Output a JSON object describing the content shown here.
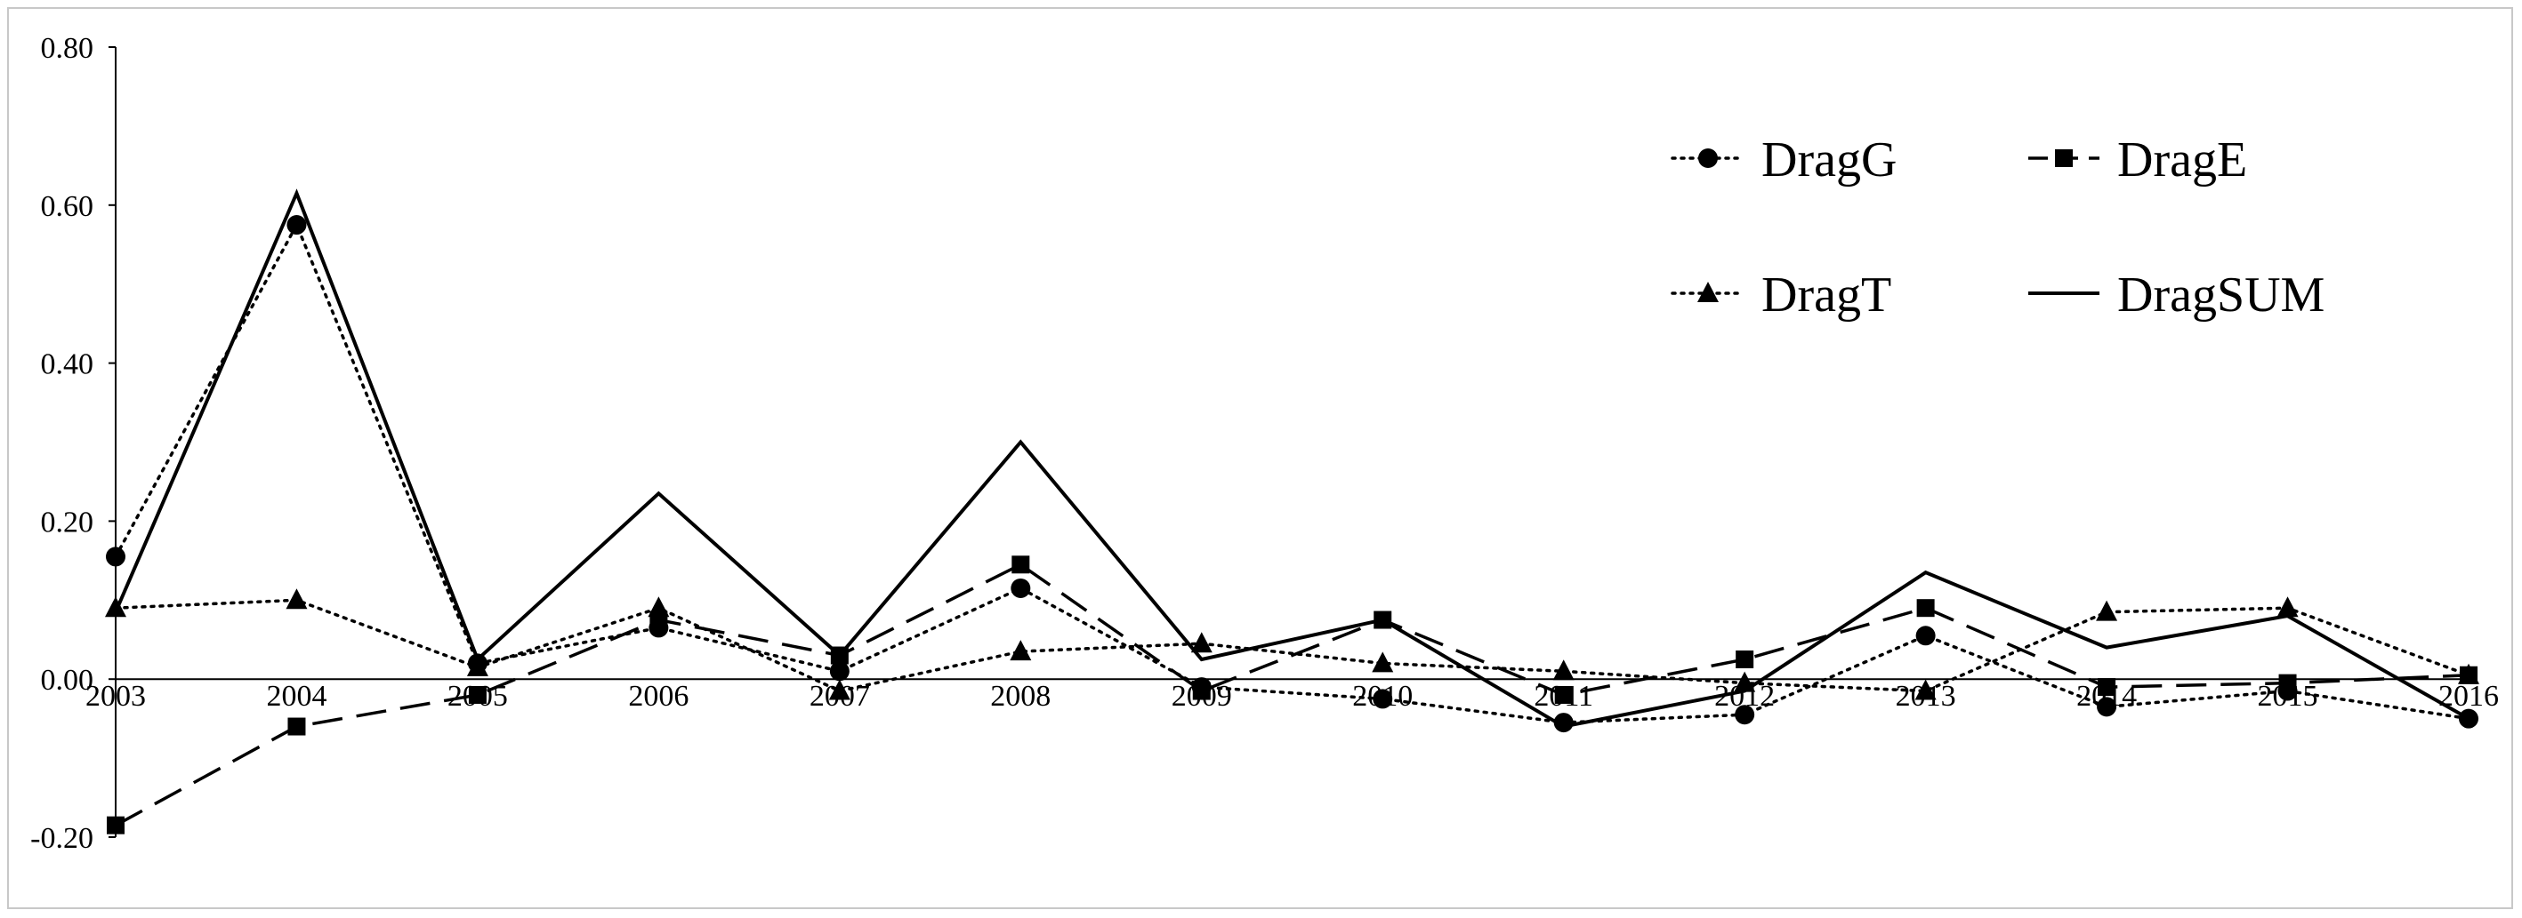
{
  "chart_data": {
    "type": "line",
    "title": "",
    "xlabel": "",
    "ylabel": "",
    "x": [
      "2003",
      "2004",
      "2005",
      "2006",
      "2007",
      "2008",
      "2009",
      "2010",
      "2011",
      "2012",
      "2013",
      "2014",
      "2015",
      "2016"
    ],
    "ylim": [
      -0.2,
      0.8
    ],
    "yticks": [
      "-0.20",
      "0.00",
      "0.20",
      "0.40",
      "0.60",
      "0.80"
    ],
    "grid": false,
    "legend_position": "top-right",
    "series": [
      {
        "name": "DragG",
        "marker": "circle",
        "line": "dotted",
        "values": [
          0.155,
          0.575,
          0.02,
          0.065,
          0.01,
          0.115,
          -0.01,
          -0.025,
          -0.055,
          -0.045,
          0.055,
          -0.035,
          -0.015,
          -0.05
        ]
      },
      {
        "name": "DragE",
        "marker": "square",
        "line": "dashed",
        "values": [
          -0.185,
          -0.06,
          -0.02,
          0.075,
          0.03,
          0.145,
          -0.015,
          0.075,
          -0.02,
          0.025,
          0.09,
          -0.01,
          -0.005,
          0.005
        ]
      },
      {
        "name": "DragT",
        "marker": "triangle",
        "line": "dotted",
        "values": [
          0.09,
          0.1,
          0.015,
          0.09,
          -0.015,
          0.035,
          0.045,
          0.02,
          0.01,
          -0.005,
          -0.015,
          0.085,
          0.09,
          0.005
        ]
      },
      {
        "name": "DragSUM",
        "marker": "none",
        "line": "solid",
        "values": [
          0.085,
          0.615,
          0.025,
          0.235,
          0.03,
          0.3,
          0.025,
          0.075,
          -0.06,
          -0.015,
          0.135,
          0.04,
          0.08,
          -0.05
        ]
      }
    ],
    "colors": {
      "line": "#000000",
      "axis": "#000000",
      "frame": "#c8c8c8"
    }
  }
}
